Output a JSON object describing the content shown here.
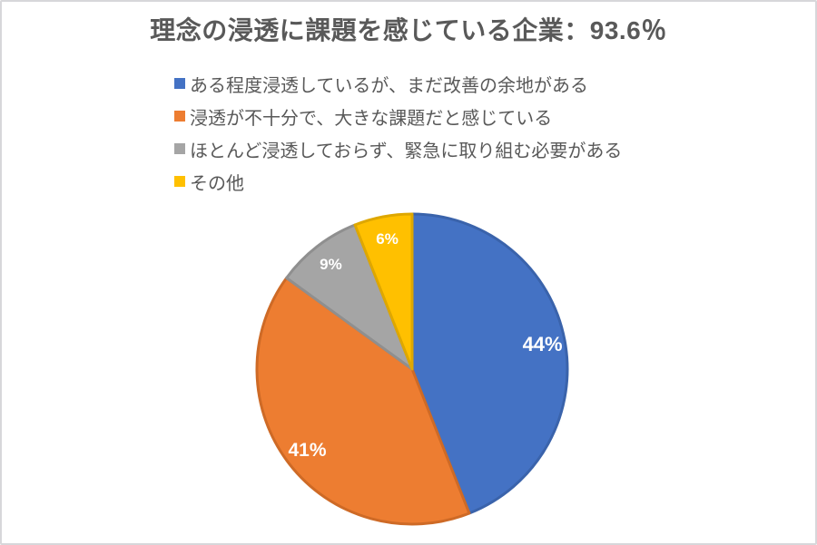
{
  "chart_data": {
    "type": "pie",
    "title": "理念の浸透に課題を感じている企業：93.6％",
    "headline_value": "93.6％",
    "direction": "clockwise",
    "start_angle_deg": 0,
    "legend_position": "top-left-stacked",
    "background_color": "#FFFFFF",
    "frame_border_color": "#D7D7DA",
    "title_color": "#595959",
    "legend_text_color": "#595959",
    "data_label_color": "#FFFFFF",
    "slices": [
      {
        "label": "ある程度浸透しているが、まだ改善の余地がある",
        "value": 44,
        "data_label": "44%",
        "color": "#4472C4",
        "border_color": "#3A63AB",
        "data_label_size": 22
      },
      {
        "label": "浸透が不十分で、大きな課題だと感じている",
        "value": 41,
        "data_label": "41%",
        "color": "#ED7D31",
        "border_color": "#CE6A26",
        "data_label_size": 21
      },
      {
        "label": "ほとんど浸透しておらず、緊急に取り組む必要がある",
        "value": 9,
        "data_label": "9%",
        "color": "#A5A5A5",
        "border_color": "#8F8F8F",
        "data_label_size": 17
      },
      {
        "label": "その他",
        "value": 6,
        "data_label": "6%",
        "color": "#FFC000",
        "border_color": "#DEA700",
        "data_label_size": 17
      }
    ]
  }
}
